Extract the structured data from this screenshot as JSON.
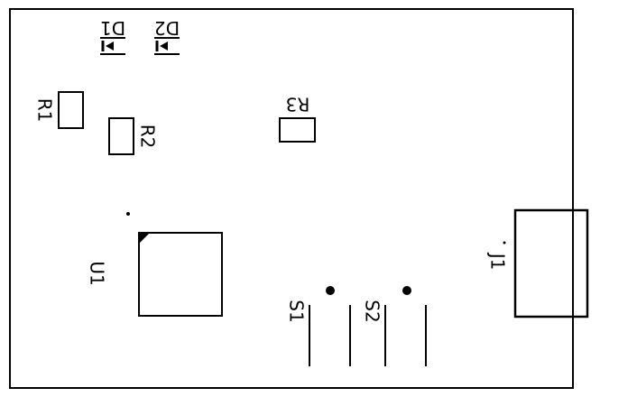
{
  "colors": {
    "silkscreen": "#000000",
    "background": "#ffffff"
  },
  "labels": {
    "d1": "D1",
    "d2": "D2",
    "r1": "R1",
    "r2": "R2",
    "r3": "R3",
    "u1": "U1",
    "s1": "S1",
    "s2": "S2",
    "j1": "J1"
  }
}
